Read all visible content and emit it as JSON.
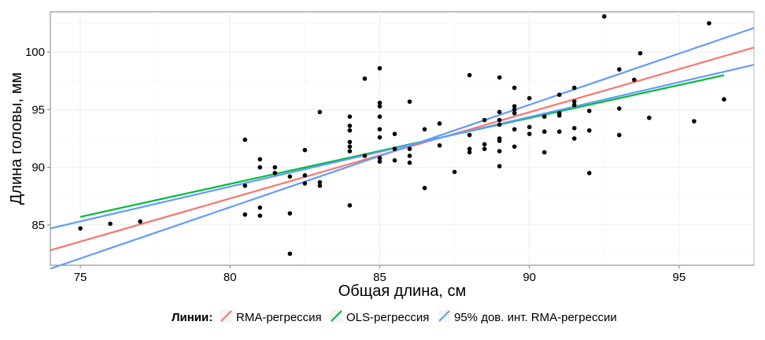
{
  "chart_data": {
    "type": "scatter",
    "title": "",
    "xlabel": "Общая длина, см",
    "ylabel": "Длина головы, мм",
    "xlim": [
      74,
      97.5
    ],
    "ylim": [
      81.5,
      103.5
    ],
    "x_ticks": [
      75,
      80,
      85,
      90,
      95
    ],
    "y_ticks": [
      85,
      90,
      95,
      100
    ],
    "grid": true,
    "legend_position": "bottom",
    "legend_title": "Линии:",
    "points": [
      [
        75,
        84.7
      ],
      [
        76,
        85.1
      ],
      [
        77,
        85.3
      ],
      [
        80.5,
        92.4
      ],
      [
        80.5,
        88.4
      ],
      [
        80.5,
        85.9
      ],
      [
        81,
        90.7
      ],
      [
        81,
        90.0
      ],
      [
        81,
        86.5
      ],
      [
        81,
        85.8
      ],
      [
        81.5,
        90.0
      ],
      [
        81.5,
        89.5
      ],
      [
        82,
        89.2
      ],
      [
        82,
        86.0
      ],
      [
        82,
        82.5
      ],
      [
        82.5,
        91.5
      ],
      [
        82.5,
        89.3
      ],
      [
        82.5,
        88.6
      ],
      [
        83,
        94.8
      ],
      [
        83,
        88.7
      ],
      [
        83,
        88.4
      ],
      [
        84,
        94.4
      ],
      [
        84,
        93.6
      ],
      [
        84,
        93.2
      ],
      [
        84,
        92.2
      ],
      [
        84,
        91.8
      ],
      [
        84,
        91.4
      ],
      [
        84,
        86.7
      ],
      [
        84.5,
        97.7
      ],
      [
        84.5,
        91.0
      ],
      [
        85,
        98.6
      ],
      [
        85,
        95.6
      ],
      [
        85,
        95.3
      ],
      [
        85,
        94.4
      ],
      [
        85,
        93.3
      ],
      [
        85,
        92.6
      ],
      [
        85,
        90.8
      ],
      [
        85,
        90.5
      ],
      [
        85.5,
        92.9
      ],
      [
        85.5,
        91.6
      ],
      [
        85.5,
        90.6
      ],
      [
        86,
        95.7
      ],
      [
        86,
        91.6
      ],
      [
        86,
        91.0
      ],
      [
        86,
        90.4
      ],
      [
        86.5,
        93.3
      ],
      [
        86.5,
        88.2
      ],
      [
        87,
        93.8
      ],
      [
        87,
        91.9
      ],
      [
        87.5,
        89.6
      ],
      [
        88,
        98.0
      ],
      [
        88,
        92.8
      ],
      [
        88,
        91.6
      ],
      [
        88,
        91.3
      ],
      [
        88.5,
        94.1
      ],
      [
        88.5,
        92.0
      ],
      [
        88.5,
        91.6
      ],
      [
        89,
        97.8
      ],
      [
        89,
        94.8
      ],
      [
        89,
        94.1
      ],
      [
        89,
        93.7
      ],
      [
        89,
        92.5
      ],
      [
        89,
        92.3
      ],
      [
        89,
        91.4
      ],
      [
        89,
        90.1
      ],
      [
        89.5,
        96.9
      ],
      [
        89.5,
        95.3
      ],
      [
        89.5,
        95.0
      ],
      [
        89.5,
        94.7
      ],
      [
        89.5,
        93.3
      ],
      [
        89.5,
        91.8
      ],
      [
        90,
        96.0
      ],
      [
        90,
        93.5
      ],
      [
        90,
        92.9
      ],
      [
        90.5,
        94.4
      ],
      [
        90.5,
        93.1
      ],
      [
        90.5,
        91.3
      ],
      [
        91,
        96.3
      ],
      [
        91,
        94.7
      ],
      [
        91,
        94.5
      ],
      [
        91,
        93.1
      ],
      [
        91.5,
        96.9
      ],
      [
        91.5,
        95.7
      ],
      [
        91.5,
        95.4
      ],
      [
        91.5,
        93.4
      ],
      [
        91.5,
        92.5
      ],
      [
        92,
        94.9
      ],
      [
        92,
        93.2
      ],
      [
        92,
        89.5
      ],
      [
        92.5,
        103.1
      ],
      [
        93,
        98.5
      ],
      [
        93,
        95.1
      ],
      [
        93,
        92.8
      ],
      [
        93.5,
        97.6
      ],
      [
        93.7,
        99.9
      ],
      [
        94,
        94.3
      ],
      [
        95.5,
        94.0
      ],
      [
        96,
        102.5
      ],
      [
        96.5,
        95.9
      ]
    ],
    "lines": [
      {
        "name": "RMA-регрессия",
        "color": "#f8766d",
        "x": [
          74,
          97.5
        ],
        "y": [
          82.8,
          100.4
        ]
      },
      {
        "name": "OLS-регрессия",
        "color": "#00ba38",
        "x": [
          75,
          96.5
        ],
        "y": [
          85.7,
          98.0
        ]
      },
      {
        "name": "95% дов. инт. RMA-регрессии",
        "color": "#619cff",
        "x": [
          74,
          97.5
        ],
        "y": [
          81.2,
          102.1
        ]
      },
      {
        "name": "95% дов. инт. RMA-регрессии",
        "color": "#619cff",
        "x": [
          74,
          97.5
        ],
        "y": [
          84.7,
          98.9
        ],
        "show_in_legend": false
      }
    ]
  }
}
